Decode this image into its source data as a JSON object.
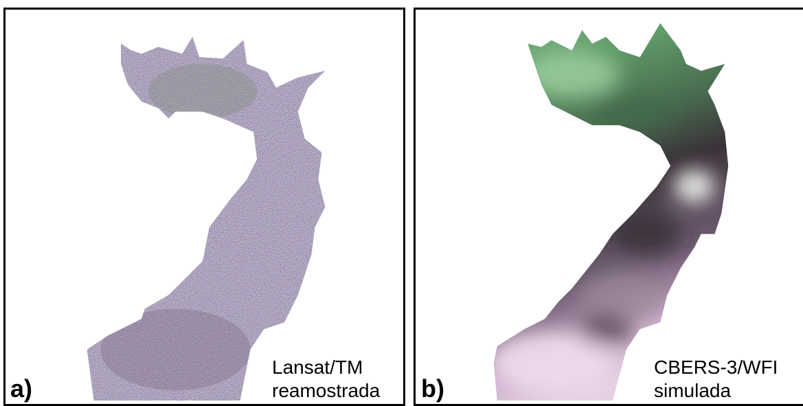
{
  "panels": [
    {
      "letter": "a)",
      "caption_line1": "Lansat/TM",
      "caption_line2": "reamostrada",
      "image_kind": "noisy-rgb-reservoir"
    },
    {
      "letter": "b)",
      "caption_line1": "CBERS-3/WFI",
      "caption_line2": "simulada",
      "image_kind": "smooth-rgb-reservoir"
    }
  ],
  "colors": {
    "border": "#000000",
    "background": "#ffffff",
    "noise_base": "#5e5a6a",
    "smooth_green": "#5f9a68",
    "smooth_dark": "#3a3238",
    "smooth_pink": "#c9aec8"
  }
}
